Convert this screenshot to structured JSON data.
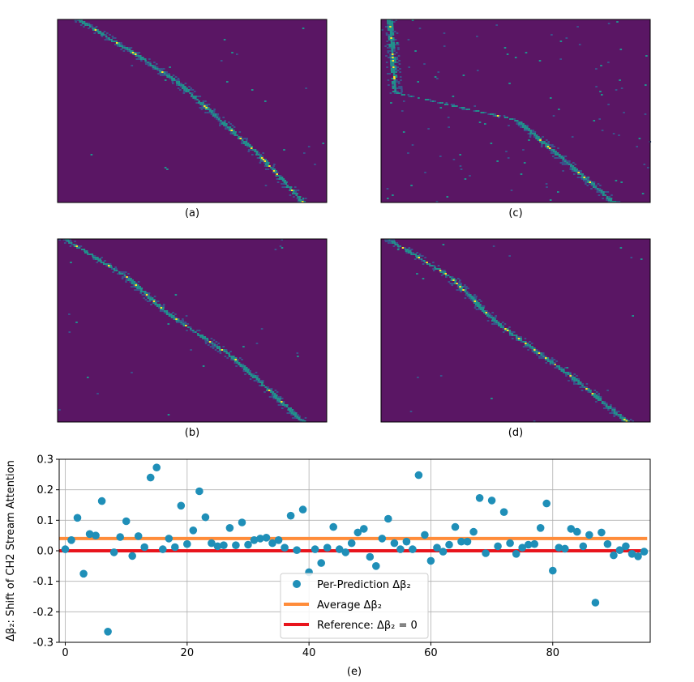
{
  "panels": {
    "a": {
      "label": "(a)"
    },
    "b": {
      "label": "(b)"
    },
    "c": {
      "label": "(c)"
    },
    "d": {
      "label": "(d)"
    }
  },
  "colors": {
    "heatmap_background": "#5a1664",
    "heatmap_low": "#3b528b",
    "heatmap_mid": "#21918c",
    "heatmap_high": "#fde725",
    "scatter": "#1f8fb8",
    "average_line": "#ff8c3a",
    "reference_line": "#e8141c",
    "grid": "#b0b0b0"
  },
  "chart_data": [
    {
      "type": "heatmap",
      "panel": "(a)",
      "description_pattern": "diagonal attention band",
      "diagonal": [
        [
          0.1,
          0.02
        ],
        [
          0.3,
          0.2
        ],
        [
          0.45,
          0.35
        ],
        [
          0.6,
          0.55
        ],
        [
          0.75,
          0.75
        ],
        [
          0.9,
          0.99
        ]
      ]
    },
    {
      "type": "heatmap",
      "panel": "(b)",
      "diagonal": [
        [
          0.05,
          0.02
        ],
        [
          0.25,
          0.2
        ],
        [
          0.4,
          0.4
        ],
        [
          0.65,
          0.65
        ],
        [
          0.9,
          0.99
        ]
      ]
    },
    {
      "type": "heatmap",
      "panel": "(c)",
      "diagonal": [
        [
          0.03,
          0.02
        ],
        [
          0.05,
          0.4
        ],
        [
          0.5,
          0.55
        ],
        [
          0.85,
          0.99
        ]
      ]
    },
    {
      "type": "heatmap",
      "panel": "(d)",
      "diagonal": [
        [
          0.05,
          0.02
        ],
        [
          0.25,
          0.2
        ],
        [
          0.42,
          0.45
        ],
        [
          0.7,
          0.75
        ],
        [
          0.9,
          0.99
        ]
      ]
    },
    {
      "type": "scatter",
      "panel": "(e)",
      "xlabel": "(e)",
      "ylabel": "Δβ₂: Shift of CH2 Stream Attention",
      "xlim": [
        -1,
        96
      ],
      "ylim": [
        -0.3,
        0.3
      ],
      "xticks": [
        0,
        20,
        40,
        60,
        80
      ],
      "yticks": [
        -0.3,
        -0.2,
        -0.1,
        0.0,
        0.1,
        0.2,
        0.3
      ],
      "grid": true,
      "legend_position": "bottom-center",
      "series": [
        {
          "name": "Per-Prediction Δβ₂",
          "kind": "points",
          "x": [
            0,
            1,
            2,
            3,
            4,
            5,
            6,
            7,
            8,
            9,
            10,
            11,
            12,
            13,
            14,
            15,
            16,
            17,
            18,
            19,
            20,
            21,
            22,
            23,
            24,
            25,
            26,
            27,
            28,
            29,
            30,
            31,
            32,
            33,
            34,
            35,
            36,
            37,
            38,
            39,
            40,
            41,
            42,
            43,
            44,
            45,
            46,
            47,
            48,
            49,
            50,
            51,
            52,
            53,
            54,
            55,
            56,
            57,
            58,
            59,
            60,
            61,
            62,
            63,
            64,
            65,
            66,
            67,
            68,
            69,
            70,
            71,
            72,
            73,
            74,
            75,
            76,
            77,
            78,
            79,
            80,
            81,
            82,
            83,
            84,
            85,
            86,
            87,
            88,
            89,
            90,
            91,
            92,
            93,
            94,
            95
          ],
          "y": [
            0.005,
            0.035,
            0.108,
            -0.075,
            0.055,
            0.05,
            0.163,
            -0.265,
            -0.005,
            0.045,
            0.097,
            -0.017,
            0.048,
            0.012,
            0.24,
            0.273,
            0.005,
            0.04,
            0.012,
            0.148,
            0.022,
            0.067,
            0.195,
            0.11,
            0.025,
            0.015,
            0.018,
            0.075,
            0.018,
            0.093,
            0.02,
            0.035,
            0.04,
            0.043,
            0.025,
            0.035,
            0.01,
            0.115,
            0.002,
            0.135,
            -0.07,
            0.005,
            -0.04,
            0.01,
            0.078,
            0.005,
            -0.005,
            0.025,
            0.06,
            0.072,
            -0.02,
            -0.05,
            0.04,
            0.105,
            0.025,
            0.005,
            0.03,
            0.005,
            0.248,
            0.052,
            -0.033,
            0.01,
            -0.003,
            0.02,
            0.078,
            0.03,
            0.03,
            0.062,
            0.173,
            -0.008,
            0.165,
            0.015,
            0.127,
            0.025,
            -0.01,
            0.01,
            0.02,
            0.022,
            0.075,
            0.155,
            -0.065,
            0.01,
            0.007,
            0.072,
            0.062,
            0.015,
            0.052,
            -0.17,
            0.06,
            0.022,
            -0.015,
            0.002,
            0.015,
            -0.01,
            -0.018,
            -0.003
          ]
        },
        {
          "name": "Average Δβ₂",
          "kind": "hline",
          "value": 0.04
        },
        {
          "name": "Reference: Δβ₂ = 0",
          "kind": "hline",
          "value": 0.0
        }
      ]
    }
  ]
}
